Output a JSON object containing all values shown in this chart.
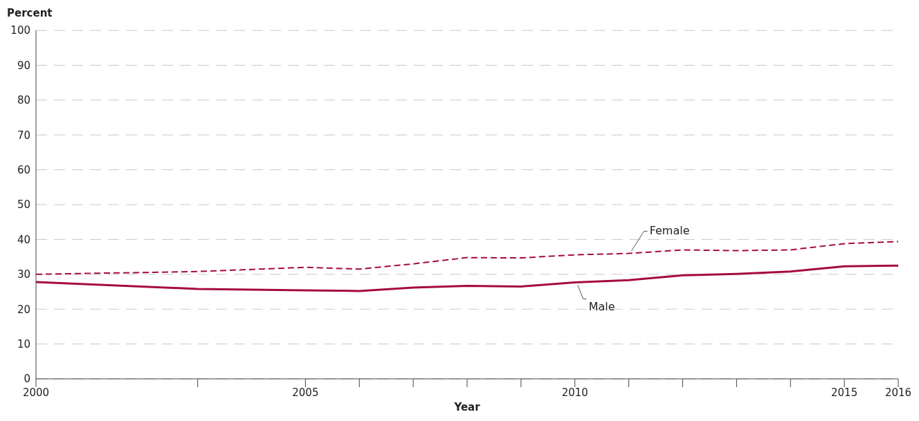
{
  "chart_data": {
    "type": "line",
    "xlabel": "Year",
    "ylabel": "Percent",
    "x": [
      2000,
      2003,
      2005,
      2006,
      2007,
      2008,
      2009,
      2010,
      2011,
      2012,
      2013,
      2014,
      2015,
      2016
    ],
    "series": [
      {
        "name": "Female",
        "color": "#a6093d",
        "line_style": "dashed",
        "values": [
          30.0,
          30.8,
          32.0,
          31.5,
          33.0,
          34.8,
          34.7,
          35.6,
          36.0,
          37.0,
          36.8,
          37.0,
          38.8,
          39.4
        ]
      },
      {
        "name": "Male",
        "color": "#a6093d",
        "line_style": "solid",
        "values": [
          27.8,
          25.8,
          25.4,
          25.2,
          26.2,
          26.7,
          26.5,
          27.7,
          28.3,
          29.7,
          30.1,
          30.8,
          32.3,
          32.5
        ]
      }
    ],
    "xlim": [
      2000,
      2016
    ],
    "xticks": [
      2000,
      {
        "value": 2003,
        "label": null
      },
      2005,
      {
        "value": 2006,
        "label": null
      },
      {
        "value": 2007,
        "label": null
      },
      {
        "value": 2008,
        "label": null
      },
      {
        "value": 2009,
        "label": null
      },
      2010,
      {
        "value": 2011,
        "label": null
      },
      {
        "value": 2012,
        "label": null
      },
      {
        "value": 2013,
        "label": null
      },
      {
        "value": 2014,
        "label": null
      },
      2015,
      2016
    ],
    "ylim": [
      0,
      100
    ],
    "yticks": [
      0,
      10,
      20,
      30,
      40,
      50,
      60,
      70,
      80,
      90,
      100
    ],
    "grid": "y",
    "marker": "none"
  }
}
